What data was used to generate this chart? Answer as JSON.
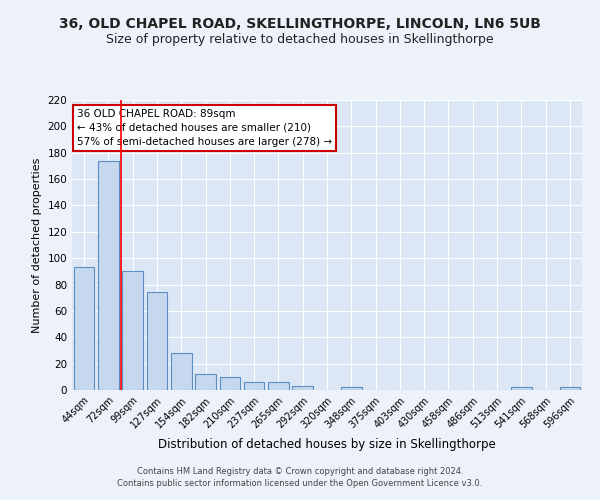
{
  "title": "36, OLD CHAPEL ROAD, SKELLINGTHORPE, LINCOLN, LN6 5UB",
  "subtitle": "Size of property relative to detached houses in Skellingthorpe",
  "xlabel": "Distribution of detached houses by size in Skellingthorpe",
  "ylabel": "Number of detached properties",
  "bar_labels": [
    "44sqm",
    "72sqm",
    "99sqm",
    "127sqm",
    "154sqm",
    "182sqm",
    "210sqm",
    "237sqm",
    "265sqm",
    "292sqm",
    "320sqm",
    "348sqm",
    "375sqm",
    "403sqm",
    "430sqm",
    "458sqm",
    "486sqm",
    "513sqm",
    "541sqm",
    "568sqm",
    "596sqm"
  ],
  "bar_values": [
    93,
    174,
    90,
    74,
    28,
    12,
    10,
    6,
    6,
    3,
    0,
    2,
    0,
    0,
    0,
    0,
    0,
    0,
    2,
    0,
    2
  ],
  "bar_color": "#c5d8ee",
  "bar_edge_color": "#5b8ec4",
  "bg_color": "#dce7f5",
  "fig_bg_color": "#edf2fa",
  "grid_color": "#ffffff",
  "red_line_x": 1.5,
  "annotation_text": "36 OLD CHAPEL ROAD: 89sqm\n← 43% of detached houses are smaller (210)\n57% of semi-detached houses are larger (278) →",
  "annotation_box_color": "#ffffff",
  "annotation_box_edge": "#cc0000",
  "ylim": [
    0,
    220
  ],
  "yticks": [
    0,
    20,
    40,
    60,
    80,
    100,
    120,
    140,
    160,
    180,
    200,
    220
  ],
  "footer": "Contains HM Land Registry data © Crown copyright and database right 2024.\nContains public sector information licensed under the Open Government Licence v3.0.",
  "title_fontsize": 10,
  "subtitle_fontsize": 9,
  "ann_fontsize": 7.5
}
